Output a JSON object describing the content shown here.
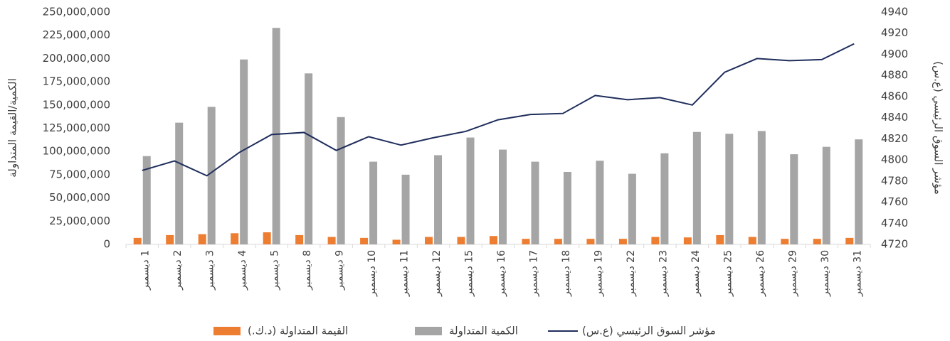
{
  "chart_data": {
    "type": "bar-line",
    "categories": [
      "1 ديسمبر",
      "2 ديسمبر",
      "3 ديسمبر",
      "4 ديسمبر",
      "5 ديسمبر",
      "8 ديسمبر",
      "9 ديسمبر",
      "10 ديسمبر",
      "11 ديسمبر",
      "12 ديسمبر",
      "15 ديسمبر",
      "16 ديسمبر",
      "17 ديسمبر",
      "18 ديسمبر",
      "19 ديسمبر",
      "22 ديسمبر",
      "23 ديسمبر",
      "24 ديسمبر",
      "25 ديسمبر",
      "26 ديسمبر",
      "29 ديسمبر",
      "30 ديسمبر",
      "31 ديسمبر"
    ],
    "y_label": "الكمية/القيمة المتداولة",
    "y2_label": "مؤشر السوق الرئيسي (ع.س)",
    "ylim": [
      0,
      250000000
    ],
    "yticks": [
      0,
      {
        "value": 25000000,
        "label": "25,000,000"
      },
      {
        "value": 50000000,
        "label": "50,000,000"
      },
      {
        "value": 75000000,
        "label": "75,000,000"
      },
      {
        "value": 100000000,
        "label": "100,000,000"
      },
      {
        "value": 125000000,
        "label": "125,000,000"
      },
      {
        "value": 150000000,
        "label": "150,000,000"
      },
      {
        "value": 175000000,
        "label": "175,000,000"
      },
      {
        "value": 200000000,
        "label": "200,000,000"
      },
      {
        "value": 225000000,
        "label": "225,000,000"
      },
      {
        "value": 250000000,
        "label": "250,000,000"
      }
    ],
    "y2lim": [
      4720,
      4940
    ],
    "y2ticks": [
      4720,
      4740,
      4760,
      4780,
      4800,
      4820,
      4840,
      4860,
      4880,
      4900,
      4920,
      4940
    ],
    "legend": "bottom",
    "series": [
      {
        "name": "القيمة المتداولة (د.ك.)",
        "type": "bar",
        "color": "#ed7d31",
        "values": [
          7000000,
          10000000,
          11000000,
          12000000,
          13000000,
          10000000,
          8000000,
          7000000,
          5000000,
          8000000,
          8000000,
          9000000,
          6000000,
          6000000,
          6000000,
          6000000,
          8000000,
          7500000,
          10000000,
          8000000,
          6000000,
          6000000,
          7000000
        ]
      },
      {
        "name": "الكمية المتداولة",
        "type": "bar",
        "color": "#a5a5a5",
        "values": [
          95000000,
          131000000,
          148000000,
          199000000,
          233000000,
          184000000,
          137000000,
          89000000,
          75000000,
          96000000,
          115000000,
          102000000,
          89000000,
          78000000,
          90000000,
          76000000,
          98000000,
          121000000,
          119000000,
          122000000,
          97000000,
          105000000,
          113000000
        ]
      },
      {
        "name": "مؤشر السوق الرئيسي (ع.س)",
        "type": "line",
        "axis": "y2",
        "color": "#1f2d5c",
        "values": [
          4790,
          4799,
          4785,
          4807,
          4824,
          4826,
          4809,
          4822,
          4814,
          4821,
          4827,
          4838,
          4843,
          4844,
          4861,
          4857,
          4859,
          4852,
          4883,
          4896,
          4894,
          4895,
          4910
        ]
      }
    ]
  }
}
